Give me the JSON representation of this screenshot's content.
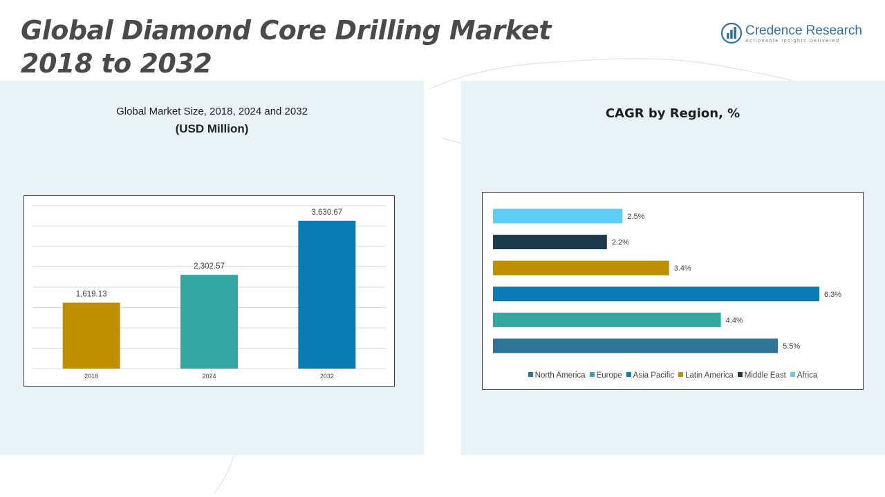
{
  "header": {
    "title_line1": "Global Diamond Core Drilling Market",
    "title_line2": "2018 to 2032"
  },
  "logo": {
    "name": "Credence Research",
    "tagline": "Actionable Insights Delivered",
    "icon": "bar-chart-circle-icon",
    "color": "#2f6f9f"
  },
  "left_panel": {
    "subtitle": "Global Market Size, 2018, 2024 and 2032",
    "unit": "(USD Million)"
  },
  "right_panel": {
    "title": "CAGR by Region, %"
  },
  "chart_data": [
    {
      "type": "bar",
      "title": "Global Market Size, 2018, 2024 and 2032",
      "ylabel": "(USD Million)",
      "categories": [
        "2018",
        "2024",
        "2032"
      ],
      "values": [
        1619.13,
        2302.57,
        3630.67
      ],
      "data_labels": [
        "1,619.13",
        "2,302.57",
        "3,630.67"
      ],
      "colors": [
        "#bf8f00",
        "#34a7a2",
        "#0a7bb3"
      ],
      "ylim": [
        0,
        4000
      ],
      "grid": true,
      "legend": "none"
    },
    {
      "type": "bar",
      "orientation": "horizontal",
      "title": "CAGR by Region, %",
      "categories": [
        "North America",
        "Europe",
        "Asia Pacific",
        "Latin America",
        "Middle East",
        "Africa"
      ],
      "values": [
        5.5,
        4.4,
        6.3,
        3.4,
        2.2,
        2.5
      ],
      "data_labels": [
        "5.5%",
        "4.4%",
        "6.3%",
        "3.4%",
        "2.2%",
        "2.5%"
      ],
      "colors": [
        "#2e7497",
        "#34a7a2",
        "#0a7bb3",
        "#bf8f00",
        "#1b3a4b",
        "#5ccdf7"
      ],
      "xlim": [
        0,
        6.3
      ],
      "grid": false,
      "legend": "bottom"
    }
  ]
}
